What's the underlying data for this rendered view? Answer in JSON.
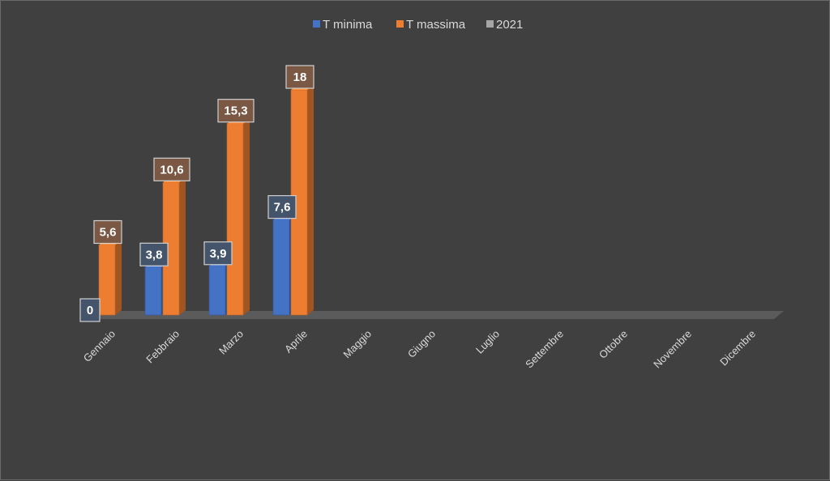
{
  "chart_data": {
    "type": "bar",
    "categories": [
      "Gennaio",
      "Febbraio",
      "Marzo",
      "Aprile",
      "Maggio",
      "Giugno",
      "Luglio",
      "Settembre",
      "Ottobre",
      "Novembre",
      "Dicembre"
    ],
    "series": [
      {
        "name": "T minima",
        "values": [
          0,
          3.8,
          3.9,
          7.6,
          null,
          null,
          null,
          null,
          null,
          null,
          null
        ],
        "labels": [
          "0",
          "3,8",
          "3,9",
          "7,6"
        ],
        "color": "#4472c4"
      },
      {
        "name": "T massima",
        "values": [
          5.6,
          10.6,
          15.3,
          18,
          null,
          null,
          null,
          null,
          null,
          null,
          null
        ],
        "labels": [
          "5,6",
          "10,6",
          "15,3",
          "18"
        ],
        "color": "#ed7d31"
      },
      {
        "name": "2021",
        "values": [
          null,
          null,
          null,
          null,
          null,
          null,
          null,
          null,
          null,
          null,
          null
        ],
        "labels": [],
        "color": "#a5a5a5"
      }
    ],
    "ylim": [
      0,
      18.5
    ],
    "legend_position": "top-center",
    "grid": false,
    "style": "3d-column"
  }
}
